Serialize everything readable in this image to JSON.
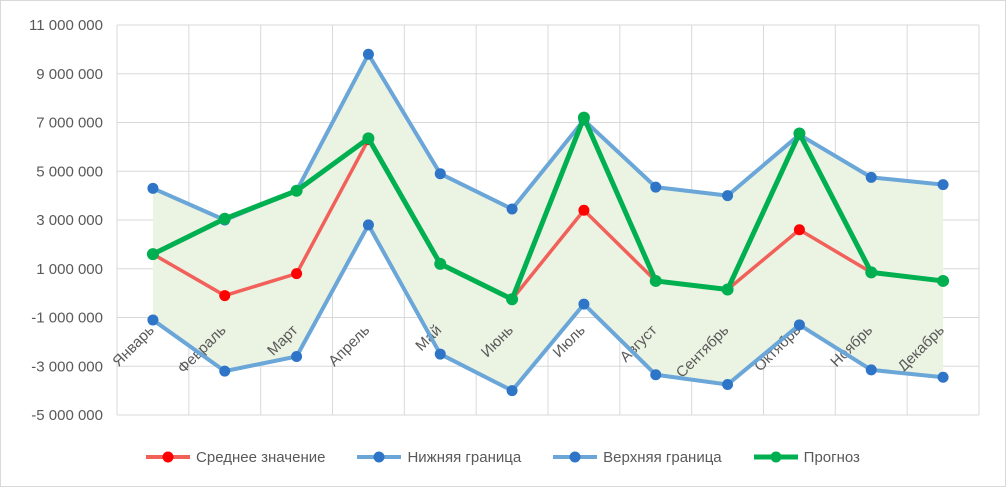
{
  "chart_data": {
    "type": "line",
    "title": "",
    "xlabel": "",
    "ylabel": "",
    "categories": [
      "Январь",
      "Февраль",
      "Март",
      "Апрель",
      "Май",
      "Июнь",
      "Июль",
      "Август",
      "Сентябрь",
      "Октябрь",
      "Ноябрь",
      "Декабрь"
    ],
    "ylim": [
      -5000000,
      11000000
    ],
    "y_ticks": [
      -5000000,
      -3000000,
      -1000000,
      1000000,
      3000000,
      5000000,
      7000000,
      9000000,
      11000000
    ],
    "y_tick_labels": [
      "-5 000 000",
      "-3 000 000",
      "-1 000 000",
      "1 000 000",
      "3 000 000",
      "5 000 000",
      "7 000 000",
      "9 000 000",
      "11 000 000"
    ],
    "grid": true,
    "band": {
      "between": [
        "Нижняя граница",
        "Верхняя граница"
      ],
      "color": "#ebf3e3"
    },
    "series": [
      {
        "name": "Среднее значение",
        "color": "#f2605a",
        "marker_color": "#ff0000",
        "values": [
          1600000,
          -100000,
          800000,
          6300000,
          1200000,
          -250000,
          3400000,
          500000,
          150000,
          2600000,
          850000,
          500000
        ]
      },
      {
        "name": "Нижняя граница",
        "color": "#6aa6d8",
        "marker_color": "#2f75c7",
        "values": [
          -1100000,
          -3200000,
          -2600000,
          2800000,
          -2500000,
          -4000000,
          -450000,
          -3350000,
          -3750000,
          -1300000,
          -3150000,
          -3450000
        ]
      },
      {
        "name": "Верхняя граница",
        "color": "#6aa6d8",
        "marker_color": "#2f75c7",
        "values": [
          4300000,
          3000000,
          4200000,
          9800000,
          4900000,
          3450000,
          7100000,
          4350000,
          4000000,
          6500000,
          4750000,
          4450000
        ]
      },
      {
        "name": "Прогноз",
        "color": "#00b050",
        "marker_color": "#00b050",
        "values": [
          1600000,
          3050000,
          4200000,
          6350000,
          1200000,
          -250000,
          7200000,
          500000,
          150000,
          6550000,
          850000,
          500000
        ]
      }
    ],
    "legend": {
      "position": "bottom"
    }
  }
}
